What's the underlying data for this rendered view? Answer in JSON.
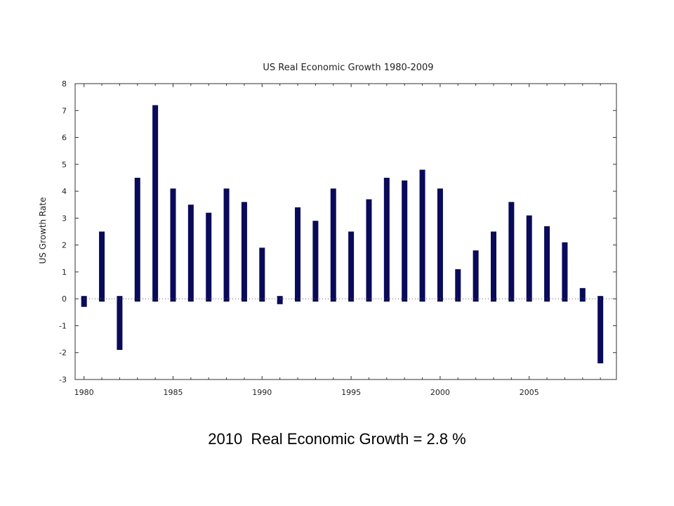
{
  "caption": "2010  Real Economic Growth = 2.8 %",
  "colors": {
    "bar": "#0a0a5a",
    "axis": "#333333",
    "zero_line": "#555555"
  },
  "chart_data": {
    "type": "bar",
    "title": "US Real Economic Growth 1980-2009",
    "xlabel": "",
    "ylabel": "US Growth Rate",
    "ylim": [
      -3,
      8
    ],
    "xlim": [
      1979.5,
      2009.9
    ],
    "yticks": [
      -3,
      -2,
      -1,
      0,
      1,
      2,
      3,
      4,
      5,
      6,
      7,
      8
    ],
    "xticks": [
      1980,
      1985,
      1990,
      1995,
      2000,
      2005
    ],
    "zero_line": "dotted",
    "grid": false,
    "x": [
      1980,
      1981,
      1982,
      1983,
      1984,
      1985,
      1986,
      1987,
      1988,
      1989,
      1990,
      1991,
      1992,
      1993,
      1994,
      1995,
      1996,
      1997,
      1998,
      1999,
      2000,
      2001,
      2002,
      2003,
      2004,
      2005,
      2006,
      2007,
      2008,
      2009
    ],
    "values": [
      -0.3,
      2.5,
      -1.9,
      4.5,
      7.2,
      4.1,
      3.5,
      3.2,
      4.1,
      3.6,
      1.9,
      -0.2,
      3.4,
      2.9,
      4.1,
      2.5,
      3.7,
      4.5,
      4.4,
      4.8,
      4.1,
      1.1,
      1.8,
      2.5,
      3.6,
      3.1,
      2.7,
      2.1,
      0.4,
      -2.4
    ]
  }
}
